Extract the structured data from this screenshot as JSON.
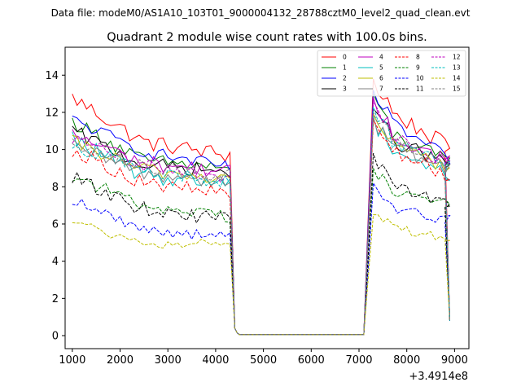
{
  "chart_data": {
    "type": "line",
    "suptitle": "Data file: modeM0/AS1A10_103T01_9000004132_28788cztM0_level2_quad_clean.evt",
    "title": "Quadrant 2 module wise count rates with 100.0s bins.",
    "xlabel": "",
    "ylabel": "",
    "x_offset_label": "+3.4914e8",
    "xlim": [
      850,
      9300
    ],
    "ylim": [
      -0.7,
      15.5
    ],
    "xticks": [
      1000,
      2000,
      3000,
      4000,
      5000,
      6000,
      7000,
      8000,
      9000
    ],
    "xtick_labels": [
      "1000",
      "2000",
      "3000",
      "4000",
      "5000",
      "6000",
      "7000",
      "8000",
      "9000"
    ],
    "yticks": [
      0,
      2,
      4,
      6,
      8,
      10,
      12,
      14
    ],
    "ytick_labels": [
      "0",
      "2",
      "4",
      "6",
      "8",
      "10",
      "12",
      "14"
    ],
    "legend_position": "top-right",
    "legend_columns": 4,
    "x_first_segment": [
      1000,
      4300
    ],
    "x_second_segment": [
      7100,
      8900
    ],
    "step": 100,
    "gap_value": 0.05,
    "series": [
      {
        "name": "0",
        "color": "#ff0000",
        "dash": "solid",
        "level1": 10.4,
        "start1": 12.8,
        "end1": 9.7,
        "level2": 12.4,
        "peak2": 13.8,
        "end2": 10.1,
        "noise": 0.45
      },
      {
        "name": "1",
        "color": "#008000",
        "dash": "solid",
        "level1": 9.4,
        "start1": 11.5,
        "end1": 9.0,
        "level2": 11.2,
        "peak2": 13.0,
        "end2": 9.3,
        "noise": 0.4
      },
      {
        "name": "2",
        "color": "#0000ff",
        "dash": "solid",
        "level1": 9.9,
        "start1": 11.6,
        "end1": 9.0,
        "level2": 11.8,
        "peak2": 13.2,
        "end2": 9.5,
        "noise": 0.35
      },
      {
        "name": "3",
        "color": "#000000",
        "dash": "solid",
        "level1": 9.2,
        "start1": 11.0,
        "end1": 8.8,
        "level2": 10.8,
        "peak2": 12.2,
        "end2": 9.2,
        "noise": 0.4
      },
      {
        "name": "4",
        "color": "#bf00bf",
        "dash": "solid",
        "level1": 9.3,
        "start1": 10.8,
        "end1": 8.8,
        "level2": 11.0,
        "peak2": 12.8,
        "end2": 9.4,
        "noise": 0.4
      },
      {
        "name": "5",
        "color": "#00bfbf",
        "dash": "solid",
        "level1": 8.6,
        "start1": 10.6,
        "end1": 8.2,
        "level2": 10.4,
        "peak2": 11.8,
        "end2": 8.6,
        "noise": 0.45
      },
      {
        "name": "6",
        "color": "#bfbf00",
        "dash": "solid",
        "level1": 8.9,
        "start1": 10.4,
        "end1": 8.4,
        "level2": 10.6,
        "peak2": 11.9,
        "end2": 9.0,
        "noise": 0.4
      },
      {
        "name": "7",
        "color": "#808080",
        "dash": "solid",
        "level1": 8.7,
        "start1": 10.2,
        "end1": 8.3,
        "level2": 10.5,
        "peak2": 11.7,
        "end2": 8.9,
        "noise": 0.4
      },
      {
        "name": "8",
        "color": "#ff0000",
        "dash": "dashed",
        "level1": 8.2,
        "start1": 10.0,
        "end1": 7.6,
        "level2": 10.3,
        "peak2": 11.6,
        "end2": 8.6,
        "noise": 0.4
      },
      {
        "name": "9",
        "color": "#008000",
        "dash": "dashed",
        "level1": 7.0,
        "start1": 8.6,
        "end1": 6.4,
        "level2": 8.1,
        "peak2": 9.0,
        "end2": 7.0,
        "noise": 0.35
      },
      {
        "name": "10",
        "color": "#0000ff",
        "dash": "dashed",
        "level1": 5.7,
        "start1": 7.3,
        "end1": 5.3,
        "level2": 7.0,
        "peak2": 8.2,
        "end2": 6.2,
        "noise": 0.3
      },
      {
        "name": "11",
        "color": "#000000",
        "dash": "dashed",
        "level1": 6.8,
        "start1": 8.5,
        "end1": 6.2,
        "level2": 8.4,
        "peak2": 9.8,
        "end2": 7.1,
        "noise": 0.4
      },
      {
        "name": "12",
        "color": "#bf00bf",
        "dash": "dashed",
        "level1": 9.1,
        "start1": 10.6,
        "end1": 8.6,
        "level2": 11.0,
        "peak2": 12.6,
        "end2": 9.3,
        "noise": 0.4
      },
      {
        "name": "13",
        "color": "#00bfbf",
        "dash": "dashed",
        "level1": 8.8,
        "start1": 10.3,
        "end1": 8.3,
        "level2": 10.8,
        "peak2": 12.3,
        "end2": 9.0,
        "noise": 0.4
      },
      {
        "name": "14",
        "color": "#bfbf00",
        "dash": "dashed",
        "level1": 4.8,
        "start1": 6.2,
        "end1": 5.1,
        "level2": 6.0,
        "peak2": 6.5,
        "end2": 5.2,
        "noise": 0.25
      },
      {
        "name": "15",
        "color": "#808080",
        "dash": "dashed",
        "level1": 9.0,
        "start1": 10.5,
        "end1": 8.6,
        "level2": 10.7,
        "peak2": 12.0,
        "end2": 9.2,
        "noise": 0.4
      }
    ]
  }
}
